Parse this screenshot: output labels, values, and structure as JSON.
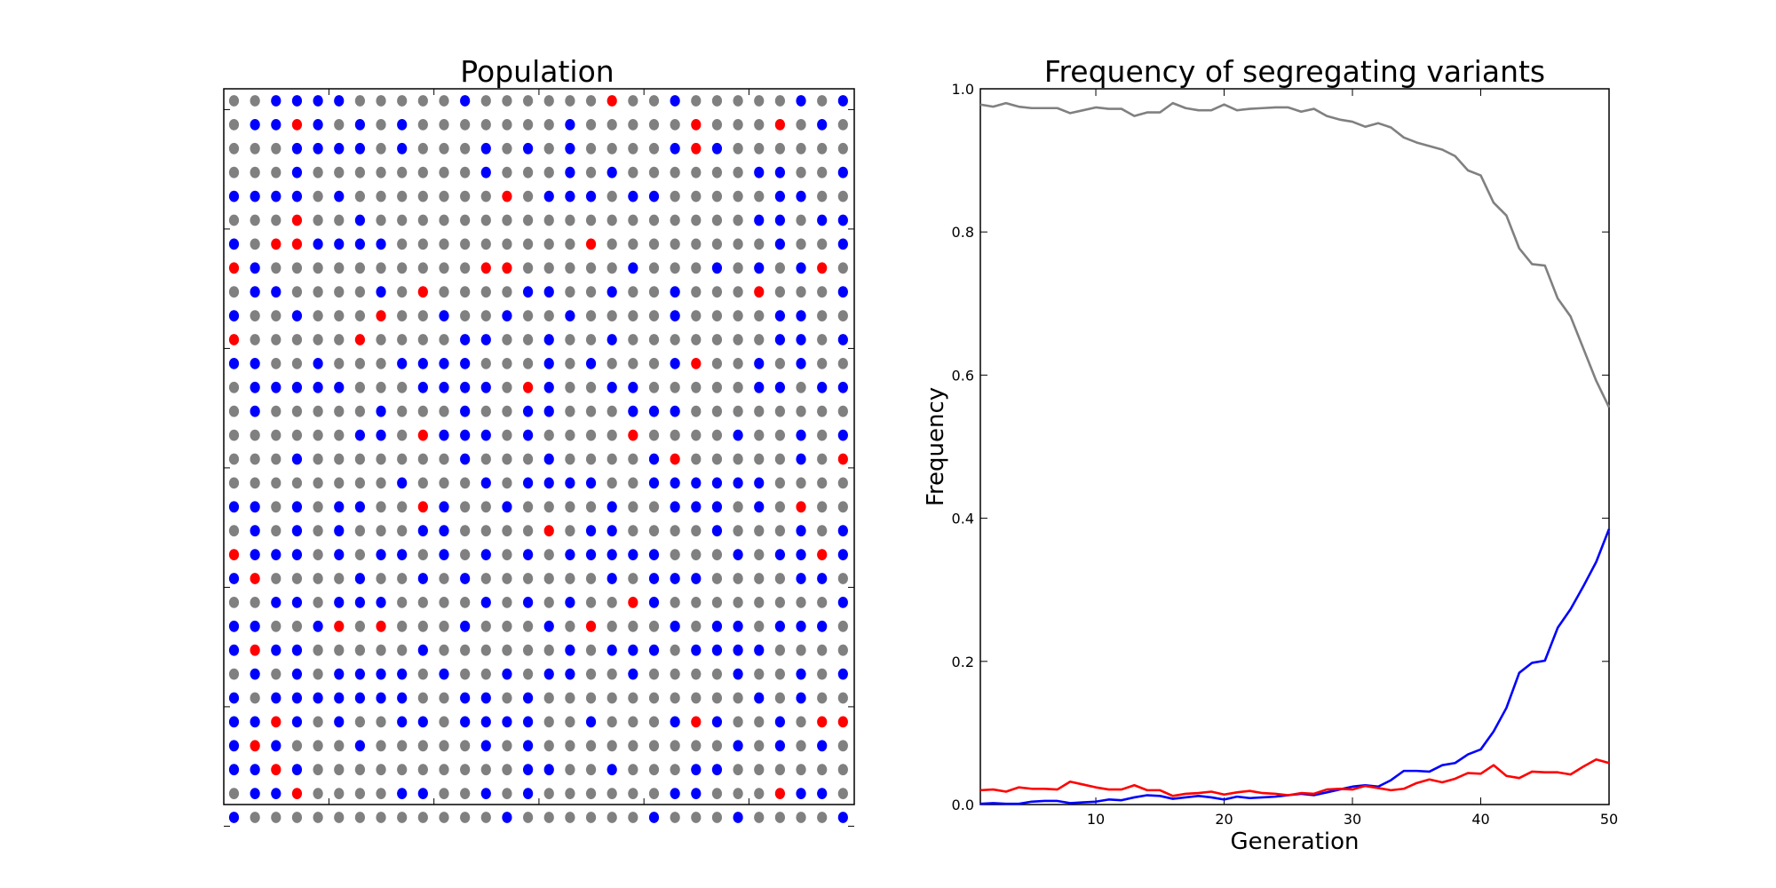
{
  "chart_data": [
    {
      "type": "scatter",
      "title": "Population",
      "xlabel": "",
      "ylabel": "",
      "xlim": [
        -0.5,
        29.5
      ],
      "ylim": [
        -0.5,
        29.5
      ],
      "grid": false,
      "colors": {
        "0": "#808080",
        "1": "#0000ff",
        "2": "#ff0000"
      },
      "rows": [
        "001111000001000000200100000101",
        "011210101000000010000020002010",
        "000111101000101010000121000000",
        "000100000000100010100000011001",
        "111101000000020111011000001100",
        "000200100000000000000000011011",
        "102211110000000002000000001001",
        "210000000000220000010001010120",
        "011000010200001100100100020001",
        "100100020010010010000100001100",
        "200000200001100100100000001101",
        "110010001111000101000120010100",
        "011111000111102100110000011011",
        "010000010001001100011100000000",
        "000000110211101000020000100101",
        "000100000001000100001200000102",
        "000000001000101111001111110000",
        "110101100210010000100111010200",
        "010101000110000201100001000101",
        "211101011010101011111000101121",
        "120000100101000000101110000110",
        "001101110000101010021000000001",
        "110012020001000102000101101110",
        "121100000100000010111011110000",
        "010101111010010110010000100101",
        "101111111001101000000000010100",
        "112101001101111001000121001022",
        "121000100000101000000000101010",
        "112100000000001100100011000000",
        "011200001100101000000110002110",
        "100000000000010000001000100001"
      ]
    },
    {
      "type": "line",
      "title": "Frequency of segregating variants",
      "xlabel": "Generation",
      "ylabel": "Frequency",
      "xlim": [
        1,
        50
      ],
      "ylim": [
        0.0,
        1.0
      ],
      "xticks": [
        "10",
        "20",
        "30",
        "40",
        "50"
      ],
      "yticks": [
        "0.0",
        "0.2",
        "0.4",
        "0.6",
        "0.8",
        "1.0"
      ],
      "grid": false,
      "legend": "none",
      "x": [
        1,
        2,
        3,
        4,
        5,
        6,
        7,
        8,
        9,
        10,
        11,
        12,
        13,
        14,
        15,
        16,
        17,
        18,
        19,
        20,
        21,
        22,
        23,
        24,
        25,
        26,
        27,
        28,
        29,
        30,
        31,
        32,
        33,
        34,
        35,
        36,
        37,
        38,
        39,
        40,
        41,
        42,
        43,
        44,
        45,
        46,
        47,
        48,
        49,
        50
      ],
      "series": [
        {
          "color": "#808080",
          "values": [
            0.978,
            0.975,
            0.98,
            0.975,
            0.973,
            0.973,
            0.973,
            0.966,
            0.97,
            0.974,
            0.972,
            0.972,
            0.962,
            0.967,
            0.967,
            0.98,
            0.973,
            0.97,
            0.97,
            0.978,
            0.97,
            0.972,
            0.973,
            0.974,
            0.974,
            0.968,
            0.972,
            0.962,
            0.957,
            0.954,
            0.947,
            0.952,
            0.946,
            0.932,
            0.925,
            0.92,
            0.915,
            0.906,
            0.886,
            0.879,
            0.841,
            0.823,
            0.777,
            0.755,
            0.753,
            0.707,
            0.682,
            0.637,
            0.592,
            0.555
          ]
        },
        {
          "color": "#0000ff",
          "values": [
            0.001,
            0.002,
            0.001,
            0.001,
            0.004,
            0.005,
            0.005,
            0.002,
            0.003,
            0.004,
            0.007,
            0.006,
            0.01,
            0.013,
            0.012,
            0.008,
            0.01,
            0.012,
            0.01,
            0.007,
            0.011,
            0.009,
            0.01,
            0.011,
            0.013,
            0.015,
            0.013,
            0.017,
            0.021,
            0.025,
            0.027,
            0.025,
            0.034,
            0.047,
            0.047,
            0.046,
            0.055,
            0.058,
            0.07,
            0.077,
            0.102,
            0.135,
            0.184,
            0.198,
            0.201,
            0.247,
            0.273,
            0.305,
            0.339,
            0.385
          ]
        },
        {
          "color": "#ff0000",
          "values": [
            0.02,
            0.021,
            0.018,
            0.024,
            0.022,
            0.022,
            0.021,
            0.032,
            0.028,
            0.024,
            0.021,
            0.021,
            0.027,
            0.02,
            0.02,
            0.012,
            0.015,
            0.016,
            0.018,
            0.014,
            0.017,
            0.019,
            0.016,
            0.015,
            0.013,
            0.016,
            0.015,
            0.021,
            0.022,
            0.021,
            0.026,
            0.023,
            0.02,
            0.022,
            0.03,
            0.035,
            0.031,
            0.036,
            0.044,
            0.043,
            0.055,
            0.04,
            0.037,
            0.046,
            0.045,
            0.045,
            0.042,
            0.053,
            0.063,
            0.058
          ]
        }
      ]
    }
  ]
}
